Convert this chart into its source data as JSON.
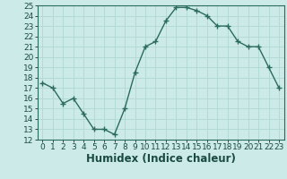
{
  "x": [
    0,
    1,
    2,
    3,
    4,
    5,
    6,
    7,
    8,
    9,
    10,
    11,
    12,
    13,
    14,
    15,
    16,
    17,
    18,
    19,
    20,
    21,
    22,
    23
  ],
  "y": [
    17.5,
    17.0,
    15.5,
    16.0,
    14.5,
    13.0,
    13.0,
    12.5,
    15.0,
    18.5,
    21.0,
    21.5,
    23.5,
    24.8,
    24.8,
    24.5,
    24.0,
    23.0,
    23.0,
    21.5,
    21.0,
    21.0,
    19.0,
    17.0
  ],
  "xlabel": "Humidex (Indice chaleur)",
  "ylim": [
    12,
    25
  ],
  "xlim": [
    -0.5,
    23.5
  ],
  "yticks": [
    12,
    13,
    14,
    15,
    16,
    17,
    18,
    19,
    20,
    21,
    22,
    23,
    24,
    25
  ],
  "xticks": [
    0,
    1,
    2,
    3,
    4,
    5,
    6,
    7,
    8,
    9,
    10,
    11,
    12,
    13,
    14,
    15,
    16,
    17,
    18,
    19,
    20,
    21,
    22,
    23
  ],
  "line_color": "#2a6b5e",
  "marker": "+",
  "marker_size": 4,
  "bg_color": "#cceae7",
  "grid_color": "#b0d8d4",
  "tick_label_fontsize": 6.5,
  "xlabel_fontsize": 8.5,
  "line_width": 1.0
}
